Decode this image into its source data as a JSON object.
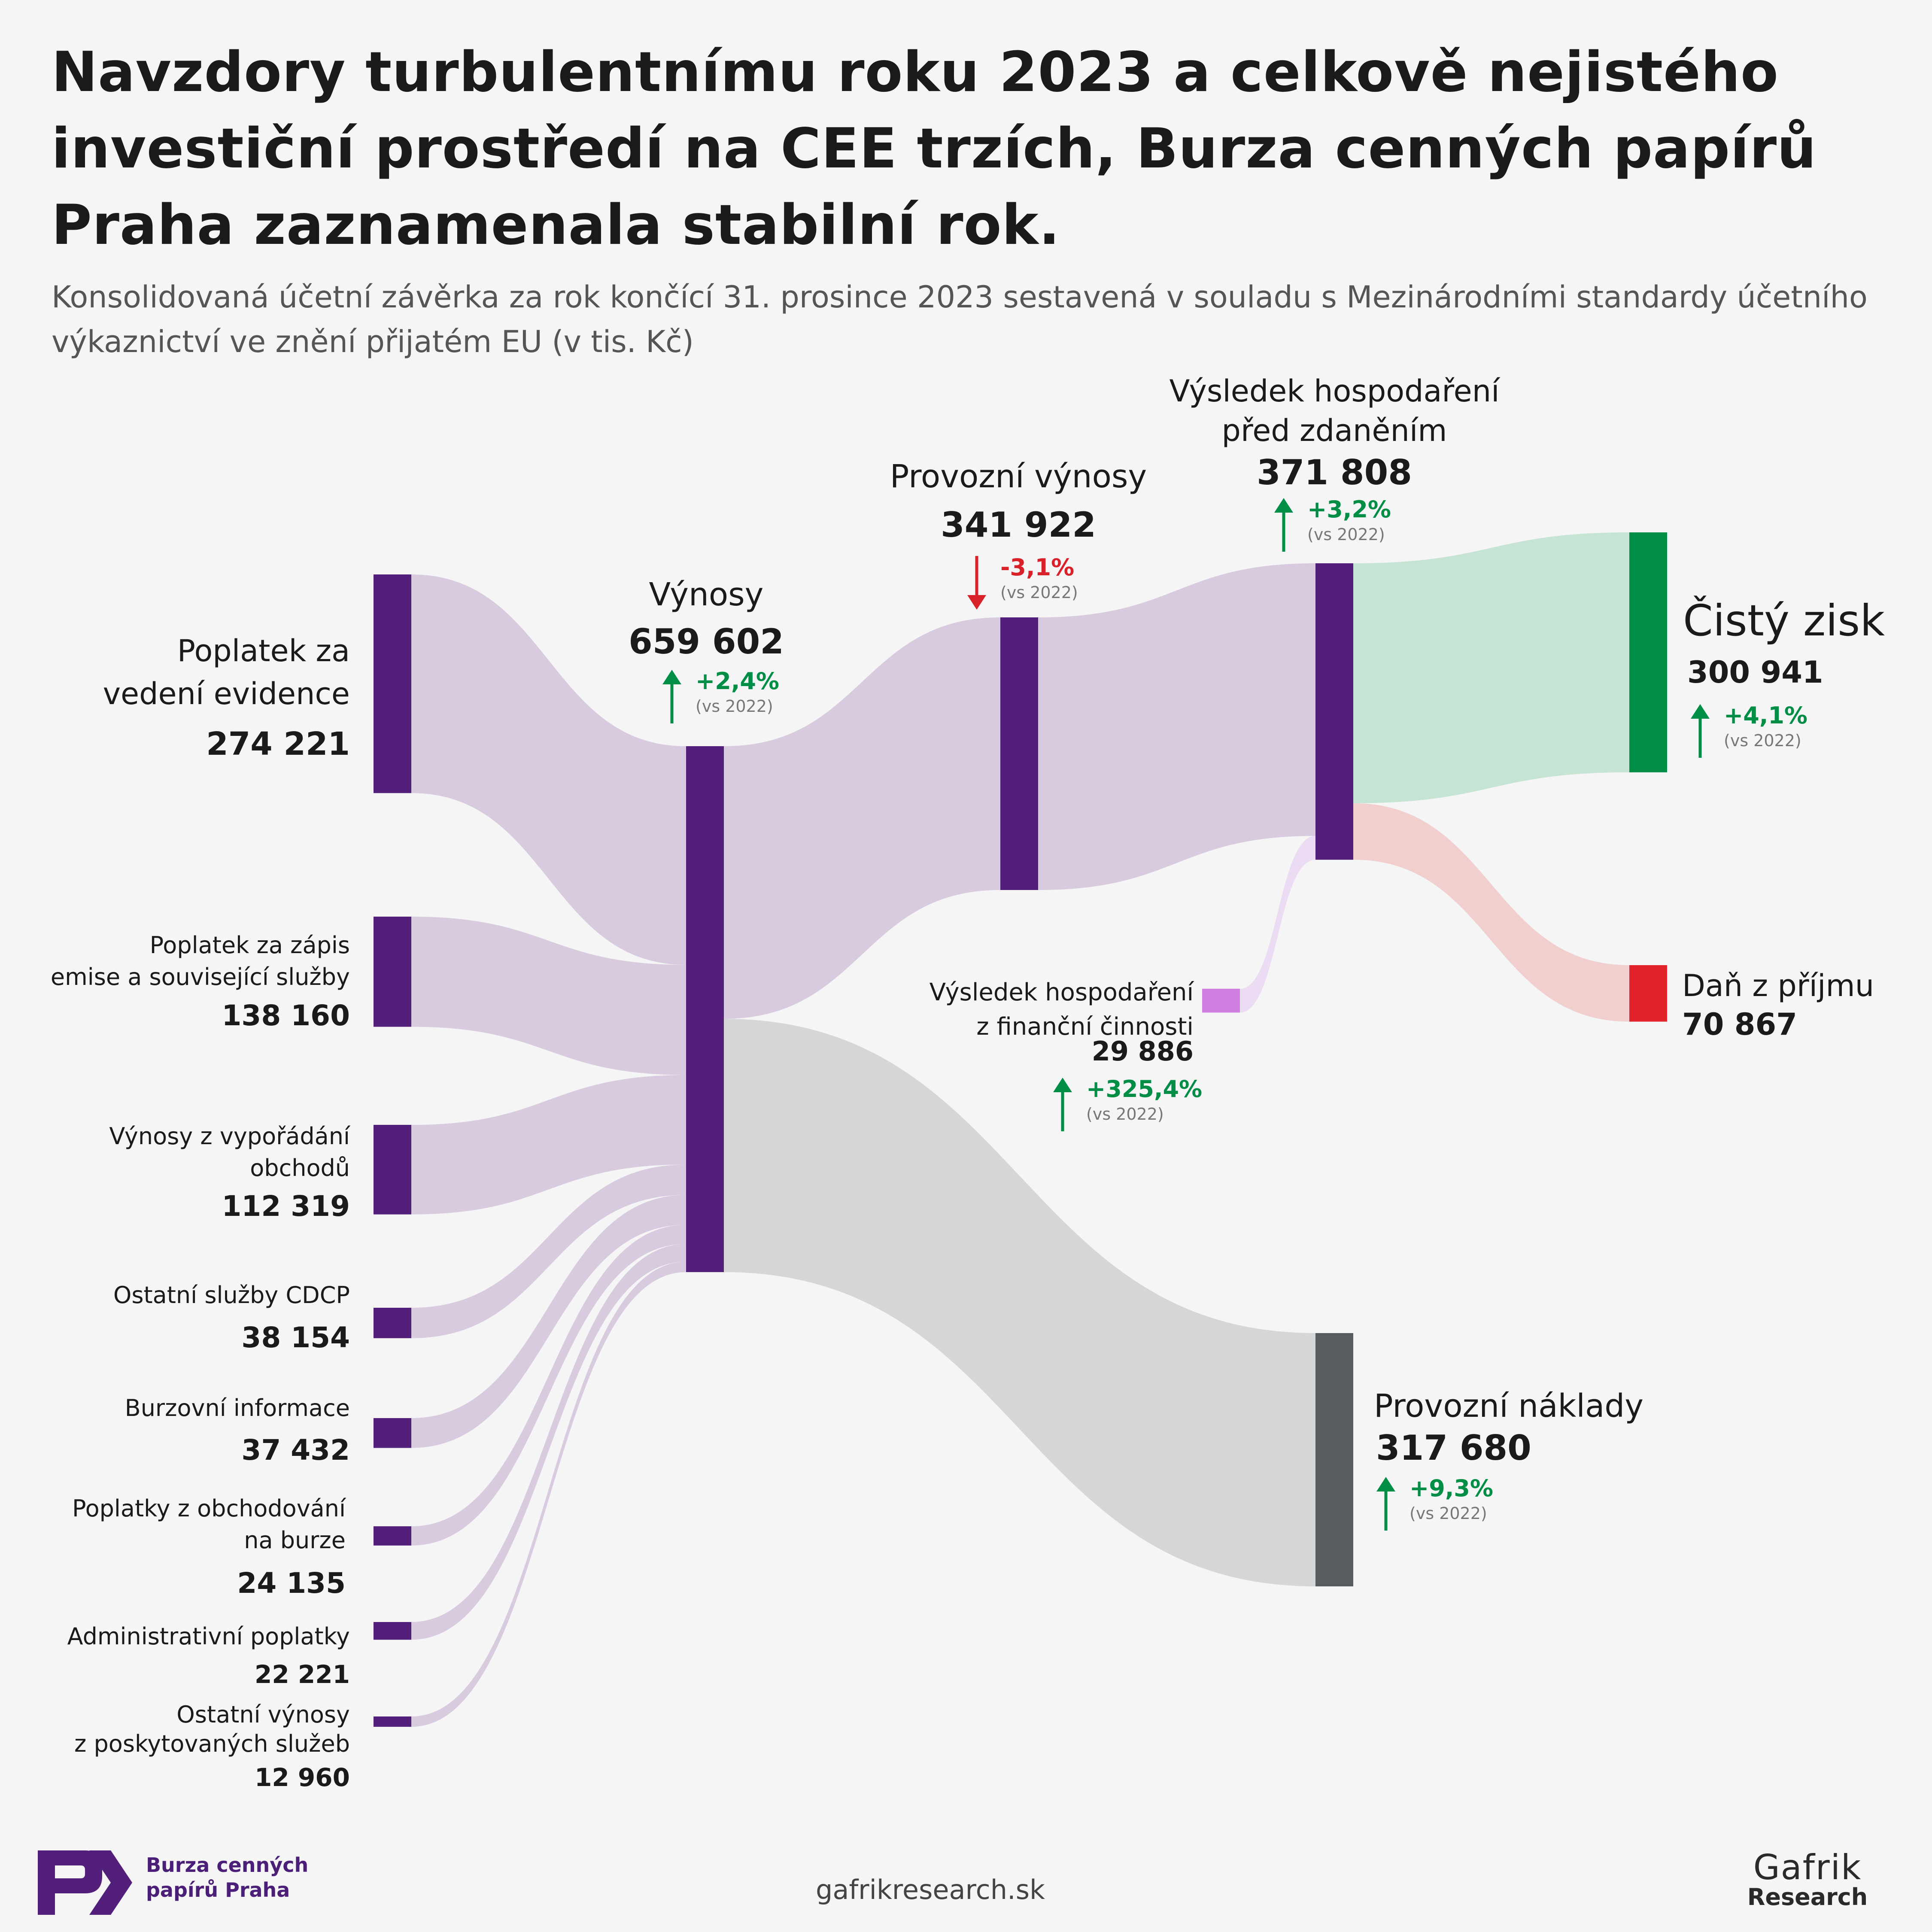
{
  "title": "Navzdory turbulentnímu roku 2023 a celkově nejistého investiční prostředí na CEE trzích, Burza cenných papírů Praha zaznamenala stabilní rok.",
  "subtitle": "Konsolidovaná účetní závěrka za rok končící 31. prosince 2023 sestavená v souladu s Mezinárodními standardy účetního výkaznictví ve znění přijatém EU (v tis. Kč)",
  "comparison_note": "(vs 2022)",
  "colors": {
    "node_purple": "#521f7b",
    "flow_purple": "#d8cbe0",
    "flow_green": "#c6e4d3",
    "node_green": "#008d46",
    "flow_red": "#f1cfcf",
    "node_red": "#e1242b",
    "flow_grey": "#d5d6d7",
    "node_grey": "#575c5e",
    "node_finance": "#cf7fe0",
    "flow_finance": "#ecdcf3",
    "up": "#008d46",
    "down": "#d9212a"
  },
  "chart_data": {
    "type": "sankey",
    "unit": "tis. Kč",
    "nodes": [
      {
        "id": "poplatek_evidence",
        "label": "Poplatek za\nvedení evidence",
        "value": 274221,
        "value_label": "274 221"
      },
      {
        "id": "poplatek_zapis",
        "label": "Poplatek za zápis\nemise a související služby",
        "value": 138160,
        "value_label": "138 160"
      },
      {
        "id": "vyporadani",
        "label": "Výnosy z vypořádání\nobchodů",
        "value": 112319,
        "value_label": "112 319"
      },
      {
        "id": "cdcp",
        "label": "Ostatní služby CDCP",
        "value": 38154,
        "value_label": "38 154"
      },
      {
        "id": "informace",
        "label": "Burzovní informace",
        "value": 37432,
        "value_label": "37 432"
      },
      {
        "id": "obchodovani",
        "label": "Poplatky z obchodování\nna burze",
        "value": 24135,
        "value_label": "24 135"
      },
      {
        "id": "administrativni",
        "label": "Administrativní poplatky",
        "value": 22221,
        "value_label": "22 221"
      },
      {
        "id": "ostatni_vynosy",
        "label": "Ostatní výnosy\nz poskytovaných služeb",
        "value": 12960,
        "value_label": "12 960"
      },
      {
        "id": "vynosy",
        "label": "Výnosy",
        "value": 659602,
        "value_label": "659 602",
        "change": "+2,4%",
        "direction": "up"
      },
      {
        "id": "provozni_vynosy",
        "label": "Provozní výnosy",
        "value": 341922,
        "value_label": "341 922",
        "change": "-3,1%",
        "direction": "down"
      },
      {
        "id": "financni",
        "label": "Výsledek hospodaření\nz finanční činnosti",
        "value": 29886,
        "value_label": "29 886",
        "change": "+325,4%",
        "direction": "up"
      },
      {
        "id": "vh_pred",
        "label": "Výsledek hospodaření\npřed zdaněním",
        "value": 371808,
        "value_label": "371 808",
        "change": "+3,2%",
        "direction": "up"
      },
      {
        "id": "cisty_zisk",
        "label": "Čistý zisk",
        "value": 300941,
        "value_label": "300 941",
        "change": "+4,1%",
        "direction": "up"
      },
      {
        "id": "dan",
        "label": "Daň z příjmu",
        "value": 70867,
        "value_label": "70 867"
      },
      {
        "id": "provozni_naklady",
        "label": "Provozní náklady",
        "value": 317680,
        "value_label": "317 680",
        "change": "+9,3%",
        "direction": "up"
      }
    ],
    "links": [
      {
        "source": "poplatek_evidence",
        "target": "vynosy",
        "value": 274221
      },
      {
        "source": "poplatek_zapis",
        "target": "vynosy",
        "value": 138160
      },
      {
        "source": "vyporadani",
        "target": "vynosy",
        "value": 112319
      },
      {
        "source": "cdcp",
        "target": "vynosy",
        "value": 38154
      },
      {
        "source": "informace",
        "target": "vynosy",
        "value": 37432
      },
      {
        "source": "obchodovani",
        "target": "vynosy",
        "value": 24135
      },
      {
        "source": "administrativni",
        "target": "vynosy",
        "value": 22221
      },
      {
        "source": "ostatni_vynosy",
        "target": "vynosy",
        "value": 12960
      },
      {
        "source": "vynosy",
        "target": "provozni_vynosy",
        "value": 341922
      },
      {
        "source": "vynosy",
        "target": "provozni_naklady",
        "value": 317680
      },
      {
        "source": "provozni_vynosy",
        "target": "vh_pred",
        "value": 341922
      },
      {
        "source": "financni",
        "target": "vh_pred",
        "value": 29886
      },
      {
        "source": "vh_pred",
        "target": "cisty_zisk",
        "value": 300941
      },
      {
        "source": "vh_pred",
        "target": "dan",
        "value": 70867
      }
    ]
  },
  "footer": {
    "url": "gafrikresearch.sk",
    "bcpp_name": "Burza cenných\npapírů Praha",
    "gafrik_line1": "Gafrik",
    "gafrik_line2": "Research"
  }
}
